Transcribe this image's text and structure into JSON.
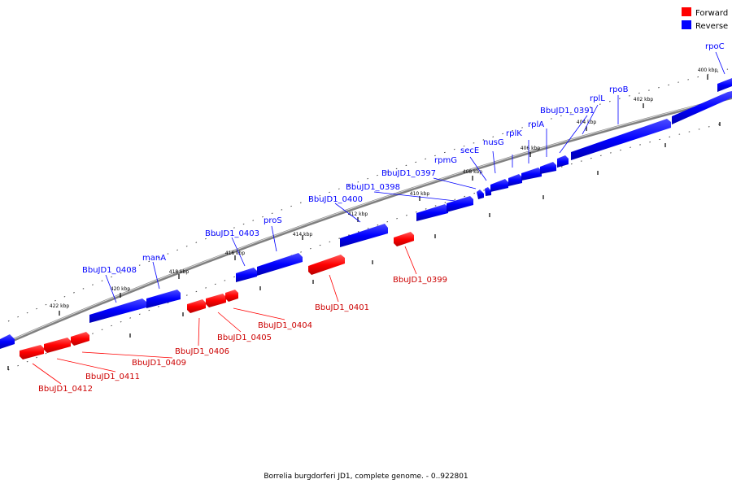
{
  "caption": "Borrelia burgdorferi JD1, complete genome. - 0..922801",
  "legend": [
    {
      "label": "Forward",
      "color": "#ff0000"
    },
    {
      "label": "Reverse",
      "color": "#0000ff"
    }
  ],
  "colors": {
    "forward": "#ff0000",
    "reverse": "#0000ff",
    "backbone": "#888888"
  },
  "axis_labels": [
    "400 kbp",
    "402 kbp",
    "404 kbp",
    "406 kbp",
    "408 kbp",
    "410 kbp",
    "412 kbp",
    "414 kbp",
    "416 kbp",
    "418 kbp",
    "420 kbp",
    "422 kbp"
  ],
  "reverse_gene_labels": [
    "rpoC",
    "rpoB",
    "rplL",
    "BbuJD1_0391",
    "rplA",
    "rplK",
    "nusG",
    "secE",
    "rpmG",
    "BbuJD1_0397",
    "BbuJD1_0398",
    "BbuJD1_0400",
    "proS",
    "BbuJD1_0403",
    "manA",
    "BbuJD1_0408"
  ],
  "forward_gene_labels": [
    "BbuJD1_0399",
    "BbuJD1_0401",
    "BbuJD1_0404",
    "BbuJD1_0405",
    "BbuJD1_0406",
    "BbuJD1_0409",
    "BbuJD1_0411",
    "BbuJD1_0412"
  ]
}
